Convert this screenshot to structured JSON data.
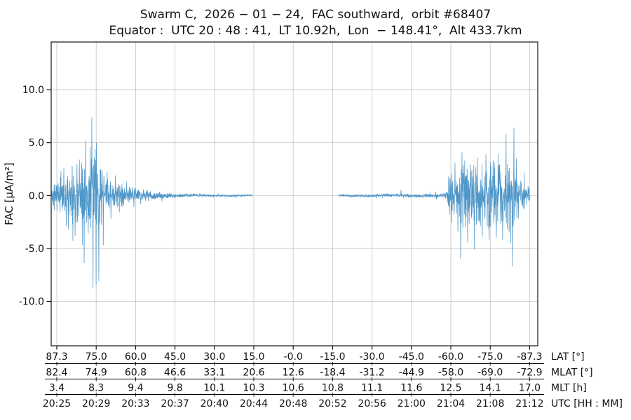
{
  "chart_data": {
    "type": "line",
    "title": "Swarm C,  2026 − 01 − 24,  FAC southward,  orbit #68407",
    "subtitle": "Equator :  UTC 20 : 48 : 41,  LT 10.92h,  Lon  − 148.41°,  Alt 433.7km",
    "ylabel": "FAC [µA/m²]",
    "ylim": [
      -14.2,
      14.5
    ],
    "grid": true,
    "legend": "none",
    "line_color": "#4e96c8",
    "grid_color": "#cacaca",
    "axis_color": "#000000",
    "background_color": "#ffffff",
    "yticks": [
      {
        "label": "10.0",
        "value": 10
      },
      {
        "label": "5.0",
        "value": 5
      },
      {
        "label": "0.0",
        "value": 0
      },
      {
        "label": "-5.0",
        "value": -5
      },
      {
        "label": "-10.0",
        "value": -10
      }
    ],
    "x_axes": [
      {
        "label": "LAT [°]",
        "ticks": [
          "87.3",
          "75.0",
          "60.0",
          "45.0",
          "30.0",
          "15.0",
          "-0.0",
          "-15.0",
          "-30.0",
          "-45.0",
          "-60.0",
          "-75.0",
          "-87.3"
        ]
      },
      {
        "label": "MLAT [°]",
        "ticks": [
          "82.4",
          "74.9",
          "60.8",
          "46.6",
          "33.1",
          "20.6",
          "12.6",
          "-18.4",
          "-31.2",
          "-44.9",
          "-58.0",
          "-69.0",
          "-72.9"
        ]
      },
      {
        "label": "MLT [h]",
        "ticks": [
          "3.4",
          "8.3",
          "9.4",
          "9.8",
          "10.1",
          "10.3",
          "10.6",
          "10.8",
          "11.1",
          "11.6",
          "12.5",
          "14.1",
          "17.0"
        ]
      },
      {
        "label": "UTC [HH : MM]",
        "ticks": [
          "20:25",
          "20:29",
          "20:33",
          "20:37",
          "20:40",
          "20:44",
          "20:48",
          "20:52",
          "20:56",
          "21:00",
          "21:04",
          "21:08",
          "21:12"
        ]
      }
    ],
    "series": {
      "name": "FAC",
      "units": "µA/m²",
      "x_start": 0.0014,
      "x_end": 0.984,
      "data_gap": [
        0.4135,
        0.5908
      ],
      "noise_seed": 11,
      "envelope": [
        [
          0.0014,
          0.9
        ],
        [
          0.01,
          1.3
        ],
        [
          0.025,
          1.5
        ],
        [
          0.04,
          1.7
        ],
        [
          0.055,
          1.9
        ],
        [
          0.065,
          2.4
        ],
        [
          0.075,
          2.8
        ],
        [
          0.088,
          3.2
        ],
        [
          0.098,
          2.6
        ],
        [
          0.108,
          1.8
        ],
        [
          0.12,
          1.2
        ],
        [
          0.135,
          1.0
        ],
        [
          0.15,
          0.8
        ],
        [
          0.165,
          0.65
        ],
        [
          0.18,
          0.5
        ],
        [
          0.2,
          0.38
        ],
        [
          0.23,
          0.25
        ],
        [
          0.26,
          0.17
        ],
        [
          0.3,
          0.11
        ],
        [
          0.36,
          0.09
        ],
        [
          0.4135,
          0.08
        ],
        [
          0.5908,
          0.1
        ],
        [
          0.65,
          0.12
        ],
        [
          0.7,
          0.13
        ],
        [
          0.76,
          0.15
        ],
        [
          0.8,
          0.18
        ],
        [
          0.81,
          0.35
        ],
        [
          0.818,
          1.5
        ],
        [
          0.83,
          2.2
        ],
        [
          0.845,
          2.6
        ],
        [
          0.86,
          2.5
        ],
        [
          0.88,
          2.6
        ],
        [
          0.9,
          2.7
        ],
        [
          0.92,
          2.6
        ],
        [
          0.935,
          2.9
        ],
        [
          0.948,
          3.0
        ],
        [
          0.955,
          2.2
        ],
        [
          0.962,
          1.3
        ],
        [
          0.97,
          0.9
        ],
        [
          0.978,
          0.7
        ],
        [
          0.983,
          0.8
        ]
      ],
      "spikes": [
        [
          0.02,
          2.3
        ],
        [
          0.026,
          2.6
        ],
        [
          0.031,
          -2.9
        ],
        [
          0.035,
          -3.2
        ],
        [
          0.043,
          2.8
        ],
        [
          0.049,
          -3.8
        ],
        [
          0.053,
          3.0
        ],
        [
          0.058,
          3.4
        ],
        [
          0.063,
          3.1
        ],
        [
          0.0677,
          -6.4
        ],
        [
          0.0706,
          5.2
        ],
        [
          0.076,
          -3.6
        ],
        [
          0.08,
          4.6
        ],
        [
          0.0836,
          7.4
        ],
        [
          0.086,
          -8.7
        ],
        [
          0.09,
          4.4
        ],
        [
          0.0922,
          -8.4
        ],
        [
          0.093,
          5.0
        ],
        [
          0.098,
          -8.1
        ],
        [
          0.102,
          2.4
        ],
        [
          0.107,
          -4.7
        ],
        [
          0.115,
          2.2
        ],
        [
          0.123,
          -2.2
        ],
        [
          0.132,
          1.9
        ],
        [
          0.14,
          -1.6
        ],
        [
          0.155,
          1.3
        ],
        [
          0.17,
          -1.1
        ],
        [
          0.184,
          -0.8
        ],
        [
          0.719,
          0.55
        ],
        [
          0.818,
          1.6
        ],
        [
          0.823,
          -2.6
        ],
        [
          0.83,
          3.1
        ],
        [
          0.836,
          -3.4
        ],
        [
          0.8415,
          -6.0
        ],
        [
          0.8444,
          4.1
        ],
        [
          0.85,
          3.3
        ],
        [
          0.856,
          -4.4
        ],
        [
          0.862,
          2.9
        ],
        [
          0.87,
          -5.1
        ],
        [
          0.876,
          3.6
        ],
        [
          0.886,
          -3.9
        ],
        [
          0.8934,
          3.9
        ],
        [
          0.9,
          -4.2
        ],
        [
          0.908,
          3.3
        ],
        [
          0.915,
          -4.0
        ],
        [
          0.922,
          2.9
        ],
        [
          0.928,
          -4.2
        ],
        [
          0.935,
          5.8
        ],
        [
          0.941,
          -3.5
        ],
        [
          0.948,
          -6.7
        ],
        [
          0.951,
          6.4
        ],
        [
          0.956,
          3.5
        ],
        [
          0.96,
          -2.2
        ],
        [
          0.965,
          1.4
        ],
        [
          0.97,
          -1.2
        ],
        [
          0.98,
          0.9
        ]
      ]
    }
  }
}
